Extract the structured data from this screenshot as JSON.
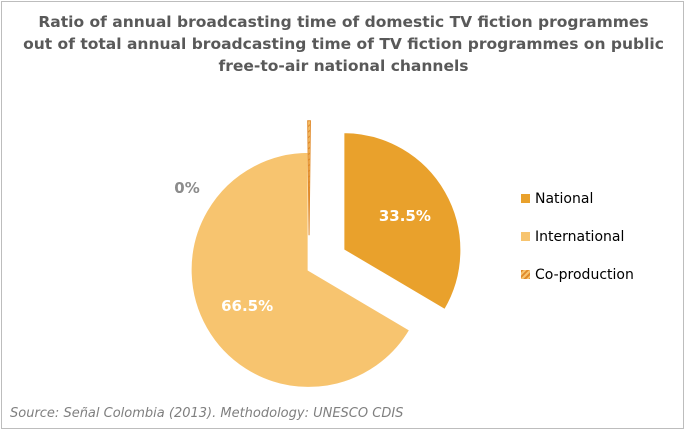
{
  "chart_data": {
    "type": "pie",
    "title": "Ratio of annual broadcasting time of domestic TV fiction programmes out of total annual broadcasting time of TV fiction programmes on public free-to-air national channels",
    "categories": [
      "National",
      "International",
      "Co-production"
    ],
    "values": [
      33.5,
      66.5,
      0
    ],
    "value_labels": [
      "33.5%",
      "66.5%",
      "0%"
    ],
    "colors": [
      "#e9a12c",
      "#f7c46f",
      "#f2b05a"
    ],
    "slices_exploded": true,
    "legend_position": "right"
  },
  "source": "Source: Señal Colombia (2013). Methodology: UNESCO CDIS"
}
